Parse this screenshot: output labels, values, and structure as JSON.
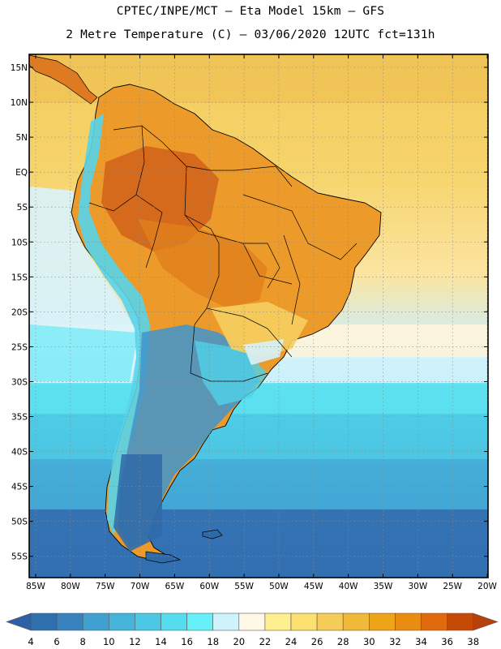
{
  "header": {
    "line1": "CPTEC/INPE/MCT –  Eta Model 15km – GFS",
    "line2": "2 Metre Temperature (C) – 03/06/2020 12UTC fct=131h"
  },
  "map": {
    "lat_labels": [
      "15N",
      "10N",
      "5N",
      "EQ",
      "5S",
      "10S",
      "15S",
      "20S",
      "25S",
      "30S",
      "35S",
      "40S",
      "45S",
      "50S",
      "55S"
    ],
    "lon_labels": [
      "85W",
      "80W",
      "75W",
      "70W",
      "65W",
      "60W",
      "55W",
      "50W",
      "45W",
      "40W",
      "35W",
      "30W",
      "25W",
      "20W"
    ]
  },
  "colorbar": {
    "labels": [
      "4",
      "6",
      "8",
      "10",
      "12",
      "14",
      "16",
      "18",
      "20",
      "22",
      "24",
      "26",
      "28",
      "30",
      "32",
      "34",
      "36",
      "38"
    ],
    "colors": [
      "#2e6fad",
      "#3882bf",
      "#40a0cf",
      "#47b4d9",
      "#4cc8e4",
      "#55dcee",
      "#66f0f8",
      "#cff3fc",
      "#fff8e6",
      "#fef08e",
      "#fbe070",
      "#f5cc58",
      "#f0b93a",
      "#eea418",
      "#ea8c12",
      "#e06a0c",
      "#c44a06"
    ],
    "low_arrow": "#2f5fa5",
    "high_arrow": "#b8400a"
  }
}
